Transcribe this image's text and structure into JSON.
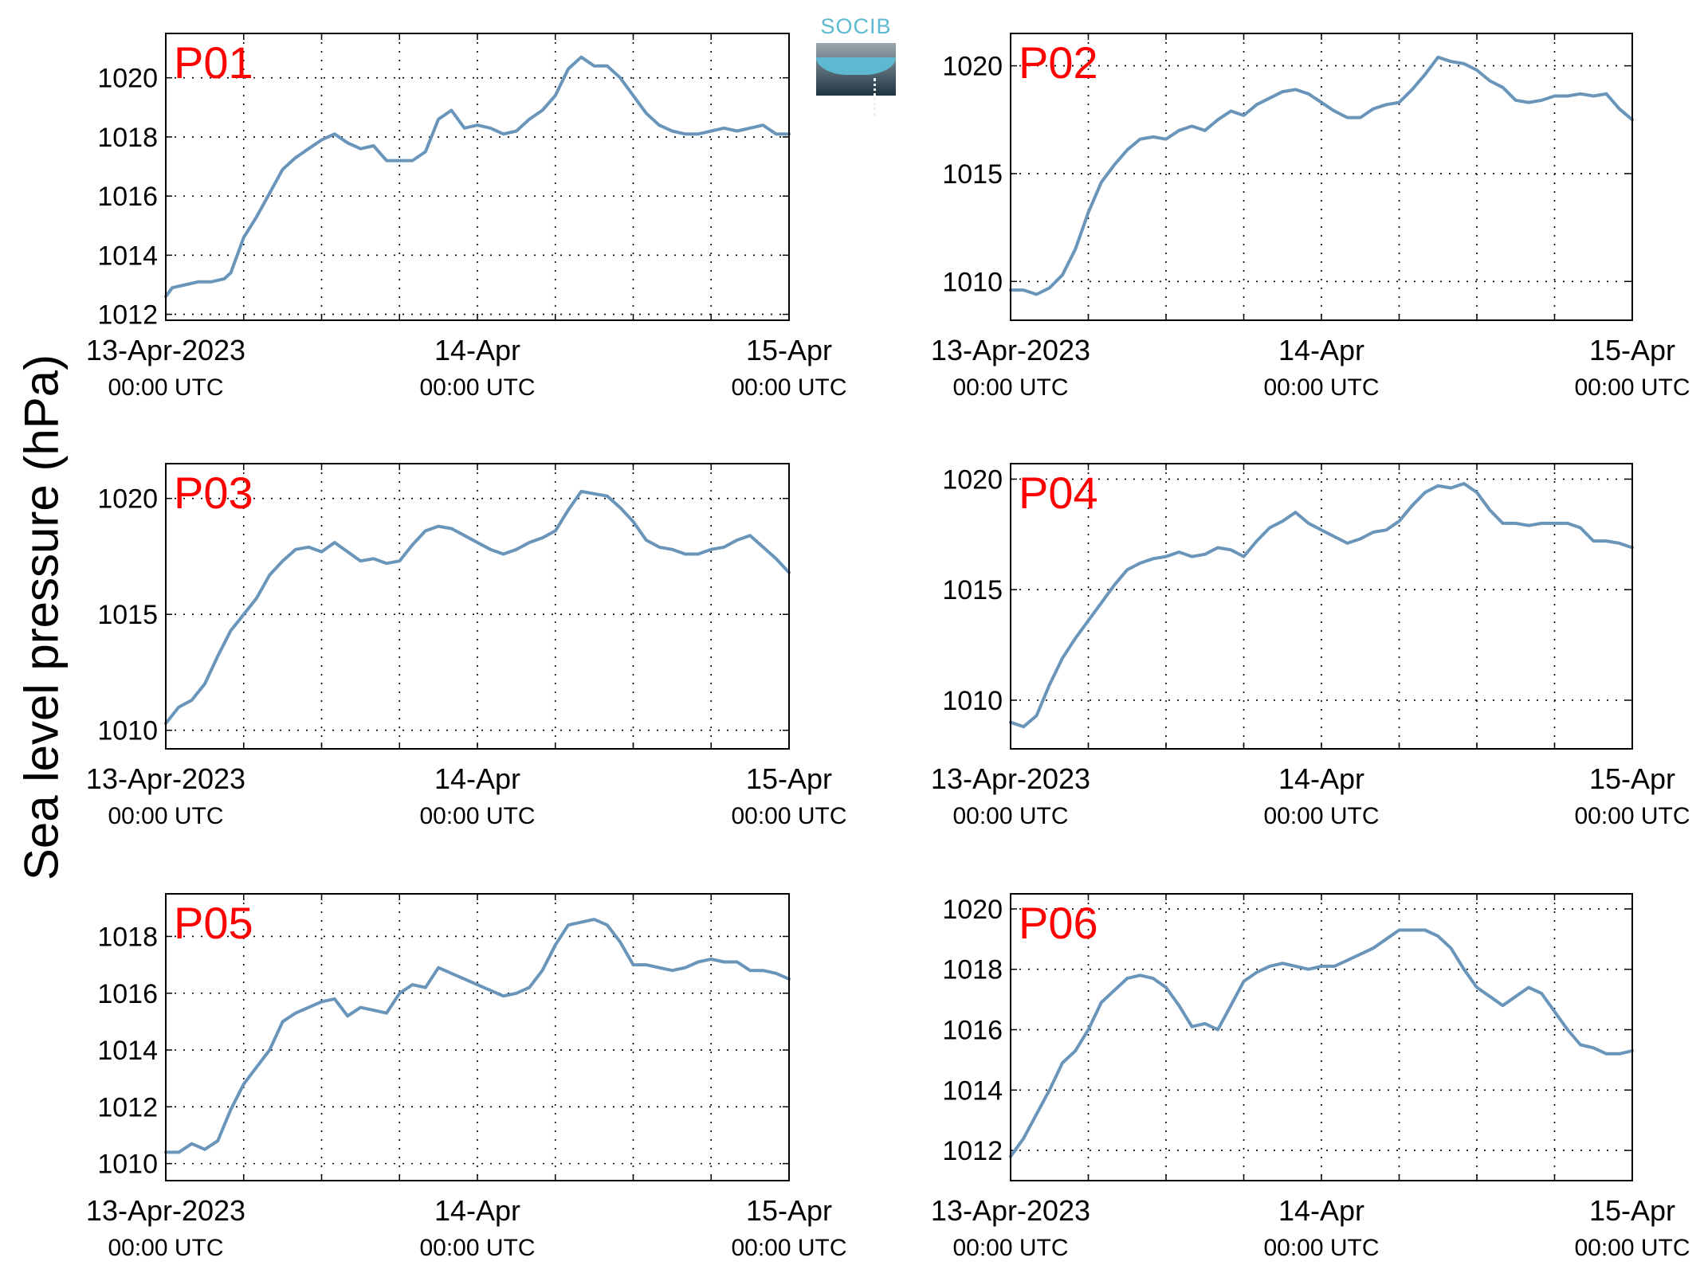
{
  "figure": {
    "ylabel": "Sea level pressure (hPa)",
    "logo_text": "SOCIB",
    "line_color": "#6a95ba",
    "label_color": "#ff0000"
  },
  "chart_data": [
    {
      "type": "line",
      "title": "P01",
      "xlim": [
        0,
        48
      ],
      "ylim": [
        1011.8,
        1021.5
      ],
      "yticks": [
        1012,
        1014,
        1016,
        1018,
        1020
      ],
      "xticks": [
        {
          "value": 0,
          "label": "13-Apr-2023",
          "sublabel": "00:00 UTC"
        },
        {
          "value": 24,
          "label": "14-Apr",
          "sublabel": "00:00 UTC"
        },
        {
          "value": 48,
          "label": "15-Apr",
          "sublabel": "00:00 UTC"
        }
      ],
      "x_minor_gridlines": [
        0,
        6,
        12,
        18,
        24,
        30,
        36,
        42,
        48
      ],
      "grid": true,
      "series": [
        {
          "x": [
            0,
            0.5,
            1.5,
            2.5,
            3.5,
            4.5,
            5,
            6,
            7,
            8,
            9,
            10,
            11,
            12,
            13,
            14,
            15,
            16,
            17,
            18,
            19,
            20,
            21,
            22,
            23,
            24,
            25,
            26,
            27,
            28,
            29,
            30,
            31,
            32,
            33,
            34,
            35,
            36,
            37,
            38,
            39,
            40,
            41,
            42,
            43,
            44,
            45,
            46,
            47,
            48
          ],
          "values": [
            1012.6,
            1012.9,
            1013.0,
            1013.1,
            1013.1,
            1013.2,
            1013.4,
            1014.6,
            1015.3,
            1016.1,
            1016.9,
            1017.3,
            1017.6,
            1017.9,
            1018.1,
            1017.8,
            1017.6,
            1017.7,
            1017.2,
            1017.2,
            1017.2,
            1017.5,
            1018.6,
            1018.9,
            1018.3,
            1018.4,
            1018.3,
            1018.1,
            1018.2,
            1018.6,
            1018.9,
            1019.4,
            1020.3,
            1020.7,
            1020.4,
            1020.4,
            1020.0,
            1019.4,
            1018.8,
            1018.4,
            1018.2,
            1018.1,
            1018.1,
            1018.2,
            1018.3,
            1018.2,
            1018.3,
            1018.4,
            1018.1,
            1018.1
          ]
        }
      ]
    },
    {
      "type": "line",
      "title": "P02",
      "xlim": [
        0,
        48
      ],
      "ylim": [
        1008.2,
        1021.5
      ],
      "yticks": [
        1010,
        1015,
        1020
      ],
      "xticks": [
        {
          "value": 0,
          "label": "13-Apr-2023",
          "sublabel": "00:00 UTC"
        },
        {
          "value": 24,
          "label": "14-Apr",
          "sublabel": "00:00 UTC"
        },
        {
          "value": 48,
          "label": "15-Apr",
          "sublabel": "00:00 UTC"
        }
      ],
      "x_minor_gridlines": [
        0,
        6,
        12,
        18,
        24,
        30,
        36,
        42,
        48
      ],
      "grid": true,
      "series": [
        {
          "x": [
            0,
            1,
            2,
            3,
            4,
            5,
            6,
            7,
            8,
            9,
            10,
            11,
            12,
            13,
            14,
            15,
            16,
            17,
            18,
            19,
            20,
            21,
            22,
            23,
            24,
            25,
            26,
            27,
            28,
            29,
            30,
            31,
            32,
            33,
            34,
            35,
            36,
            37,
            38,
            39,
            40,
            41,
            42,
            43,
            44,
            45,
            46,
            47,
            48
          ],
          "values": [
            1009.6,
            1009.6,
            1009.4,
            1009.7,
            1010.3,
            1011.5,
            1013.2,
            1014.6,
            1015.4,
            1016.1,
            1016.6,
            1016.7,
            1016.6,
            1017.0,
            1017.2,
            1017.0,
            1017.5,
            1017.9,
            1017.7,
            1018.2,
            1018.5,
            1018.8,
            1018.9,
            1018.7,
            1018.3,
            1017.9,
            1017.6,
            1017.6,
            1018.0,
            1018.2,
            1018.3,
            1018.9,
            1019.6,
            1020.4,
            1020.2,
            1020.1,
            1019.8,
            1019.3,
            1019.0,
            1018.4,
            1018.3,
            1018.4,
            1018.6,
            1018.6,
            1018.7,
            1018.6,
            1018.7,
            1018.0,
            1017.5
          ]
        }
      ]
    },
    {
      "type": "line",
      "title": "P03",
      "xlim": [
        0,
        48
      ],
      "ylim": [
        1009.2,
        1021.5
      ],
      "yticks": [
        1010,
        1015,
        1020
      ],
      "xticks": [
        {
          "value": 0,
          "label": "13-Apr-2023",
          "sublabel": "00:00 UTC"
        },
        {
          "value": 24,
          "label": "14-Apr",
          "sublabel": "00:00 UTC"
        },
        {
          "value": 48,
          "label": "15-Apr",
          "sublabel": "00:00 UTC"
        }
      ],
      "x_minor_gridlines": [
        0,
        6,
        12,
        18,
        24,
        30,
        36,
        42,
        48
      ],
      "grid": true,
      "series": [
        {
          "x": [
            0,
            1,
            2,
            3,
            4,
            5,
            6,
            7,
            8,
            9,
            10,
            11,
            12,
            13,
            14,
            15,
            16,
            17,
            18,
            19,
            20,
            21,
            22,
            23,
            24,
            25,
            26,
            27,
            28,
            29,
            30,
            31,
            32,
            33,
            34,
            35,
            36,
            37,
            38,
            39,
            40,
            41,
            42,
            43,
            44,
            45,
            46,
            47,
            48
          ],
          "values": [
            1010.3,
            1011.0,
            1011.3,
            1012.0,
            1013.2,
            1014.3,
            1015.0,
            1015.7,
            1016.7,
            1017.3,
            1017.8,
            1017.9,
            1017.7,
            1018.1,
            1017.7,
            1017.3,
            1017.4,
            1017.2,
            1017.3,
            1018.0,
            1018.6,
            1018.8,
            1018.7,
            1018.4,
            1018.1,
            1017.8,
            1017.6,
            1017.8,
            1018.1,
            1018.3,
            1018.6,
            1019.5,
            1020.3,
            1020.2,
            1020.1,
            1019.6,
            1019.0,
            1018.2,
            1017.9,
            1017.8,
            1017.6,
            1017.6,
            1017.8,
            1017.9,
            1018.2,
            1018.4,
            1017.9,
            1017.4,
            1016.8
          ]
        }
      ]
    },
    {
      "type": "line",
      "title": "P04",
      "xlim": [
        0,
        48
      ],
      "ylim": [
        1007.8,
        1020.7
      ],
      "yticks": [
        1010,
        1015,
        1020
      ],
      "xticks": [
        {
          "value": 0,
          "label": "13-Apr-2023",
          "sublabel": "00:00 UTC"
        },
        {
          "value": 24,
          "label": "14-Apr",
          "sublabel": "00:00 UTC"
        },
        {
          "value": 48,
          "label": "15-Apr",
          "sublabel": "00:00 UTC"
        }
      ],
      "x_minor_gridlines": [
        0,
        6,
        12,
        18,
        24,
        30,
        36,
        42,
        48
      ],
      "grid": true,
      "series": [
        {
          "x": [
            0,
            1,
            2,
            3,
            4,
            5,
            6,
            7,
            8,
            9,
            10,
            11,
            12,
            13,
            14,
            15,
            16,
            17,
            18,
            19,
            20,
            21,
            22,
            23,
            24,
            25,
            26,
            27,
            28,
            29,
            30,
            31,
            32,
            33,
            34,
            35,
            36,
            37,
            38,
            39,
            40,
            41,
            42,
            43,
            44,
            45,
            46,
            47,
            48
          ],
          "values": [
            1009.0,
            1008.8,
            1009.3,
            1010.7,
            1011.9,
            1012.8,
            1013.6,
            1014.4,
            1015.2,
            1015.9,
            1016.2,
            1016.4,
            1016.5,
            1016.7,
            1016.5,
            1016.6,
            1016.9,
            1016.8,
            1016.5,
            1017.2,
            1017.8,
            1018.1,
            1018.5,
            1018.0,
            1017.7,
            1017.4,
            1017.1,
            1017.3,
            1017.6,
            1017.7,
            1018.1,
            1018.8,
            1019.4,
            1019.7,
            1019.6,
            1019.8,
            1019.4,
            1018.6,
            1018.0,
            1018.0,
            1017.9,
            1018.0,
            1018.0,
            1018.0,
            1017.8,
            1017.2,
            1017.2,
            1017.1,
            1016.9
          ]
        }
      ]
    },
    {
      "type": "line",
      "title": "P05",
      "xlim": [
        0,
        48
      ],
      "ylim": [
        1009.4,
        1019.5
      ],
      "yticks": [
        1010,
        1012,
        1014,
        1016,
        1018
      ],
      "xticks": [
        {
          "value": 0,
          "label": "13-Apr-2023",
          "sublabel": "00:00 UTC"
        },
        {
          "value": 24,
          "label": "14-Apr",
          "sublabel": "00:00 UTC"
        },
        {
          "value": 48,
          "label": "15-Apr",
          "sublabel": "00:00 UTC"
        }
      ],
      "x_minor_gridlines": [
        0,
        6,
        12,
        18,
        24,
        30,
        36,
        42,
        48
      ],
      "grid": true,
      "series": [
        {
          "x": [
            0,
            1,
            2,
            3,
            4,
            5,
            6,
            7,
            8,
            9,
            10,
            11,
            12,
            13,
            14,
            15,
            16,
            17,
            18,
            19,
            20,
            21,
            22,
            23,
            24,
            25,
            26,
            27,
            28,
            29,
            30,
            31,
            32,
            33,
            34,
            35,
            36,
            37,
            38,
            39,
            40,
            41,
            42,
            43,
            44,
            45,
            46,
            47,
            48
          ],
          "values": [
            1010.4,
            1010.4,
            1010.7,
            1010.5,
            1010.8,
            1011.9,
            1012.8,
            1013.4,
            1014.0,
            1015.0,
            1015.3,
            1015.5,
            1015.7,
            1015.8,
            1015.2,
            1015.5,
            1015.4,
            1015.3,
            1016.0,
            1016.3,
            1016.2,
            1016.9,
            1016.7,
            1016.5,
            1016.3,
            1016.1,
            1015.9,
            1016.0,
            1016.2,
            1016.8,
            1017.7,
            1018.4,
            1018.5,
            1018.6,
            1018.4,
            1017.8,
            1017.0,
            1017.0,
            1016.9,
            1016.8,
            1016.9,
            1017.1,
            1017.2,
            1017.1,
            1017.1,
            1016.8,
            1016.8,
            1016.7,
            1016.5
          ]
        }
      ]
    },
    {
      "type": "line",
      "title": "P06",
      "xlim": [
        0,
        48
      ],
      "ylim": [
        1011,
        1020.5
      ],
      "yticks": [
        1012,
        1014,
        1016,
        1018,
        1020
      ],
      "xticks": [
        {
          "value": 0,
          "label": "13-Apr-2023",
          "sublabel": "00:00 UTC"
        },
        {
          "value": 24,
          "label": "14-Apr",
          "sublabel": "00:00 UTC"
        },
        {
          "value": 48,
          "label": "15-Apr",
          "sublabel": "00:00 UTC"
        }
      ],
      "x_minor_gridlines": [
        0,
        6,
        12,
        18,
        24,
        30,
        36,
        42,
        48
      ],
      "grid": true,
      "series": [
        {
          "x": [
            0,
            1,
            2,
            3,
            4,
            5,
            6,
            7,
            8,
            9,
            10,
            11,
            12,
            13,
            14,
            15,
            16,
            17,
            18,
            19,
            20,
            21,
            22,
            23,
            24,
            25,
            26,
            27,
            28,
            29,
            30,
            31,
            32,
            33,
            34,
            35,
            36,
            37,
            38,
            39,
            40,
            41,
            42,
            43,
            44,
            45,
            46,
            47,
            48
          ],
          "values": [
            1011.8,
            1012.4,
            1013.2,
            1014.0,
            1014.9,
            1015.3,
            1016.0,
            1016.9,
            1017.3,
            1017.7,
            1017.8,
            1017.7,
            1017.4,
            1016.8,
            1016.1,
            1016.2,
            1016.0,
            1016.8,
            1017.6,
            1017.9,
            1018.1,
            1018.2,
            1018.1,
            1018.0,
            1018.1,
            1018.1,
            1018.3,
            1018.5,
            1018.7,
            1019.0,
            1019.3,
            1019.3,
            1019.3,
            1019.1,
            1018.7,
            1018.0,
            1017.4,
            1017.1,
            1016.8,
            1017.1,
            1017.4,
            1017.2,
            1016.6,
            1016.0,
            1015.5,
            1015.4,
            1015.2,
            1015.2,
            1015.3
          ]
        }
      ]
    }
  ]
}
